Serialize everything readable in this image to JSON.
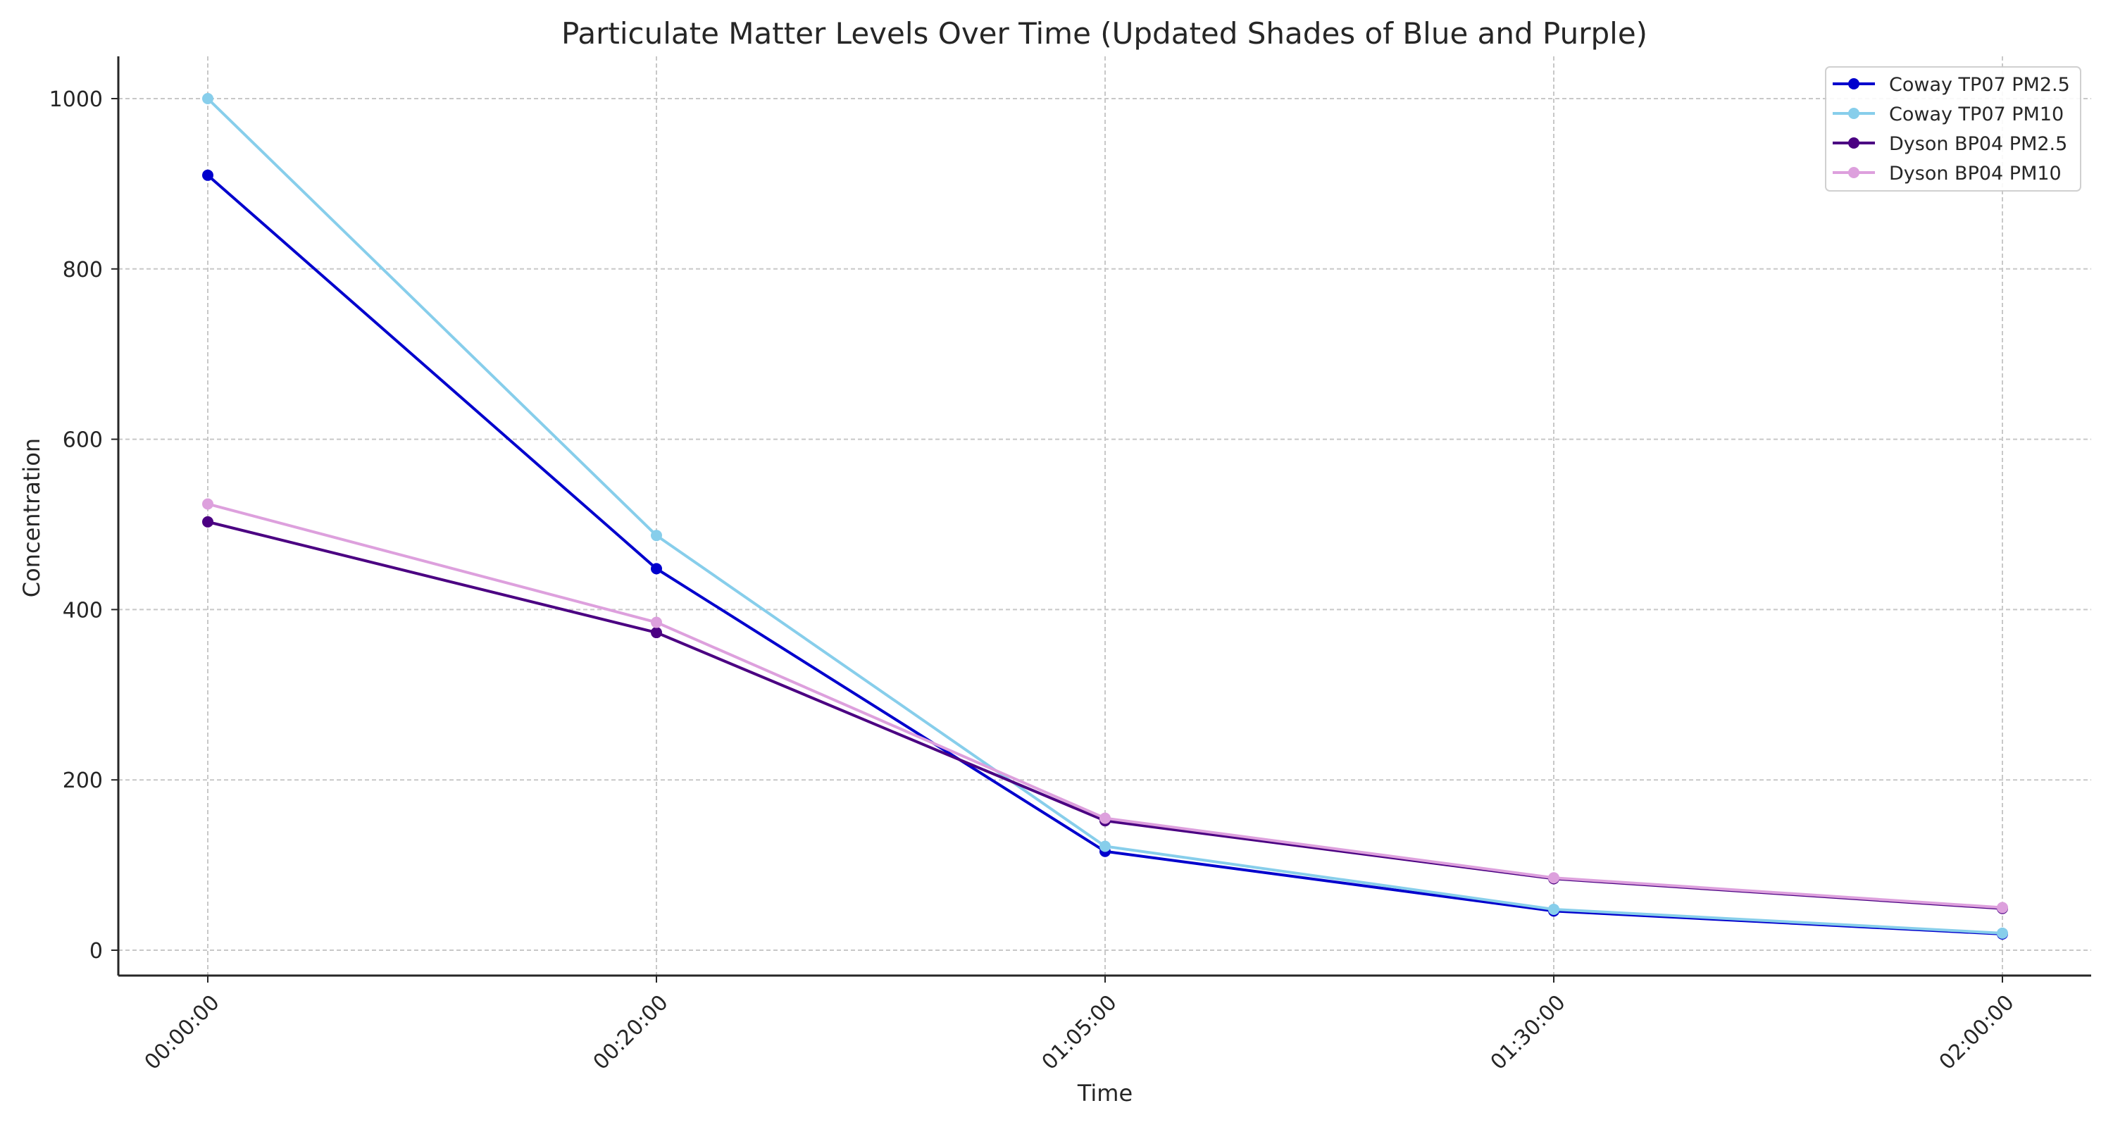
{
  "chart_data": {
    "type": "line",
    "title": "Particulate Matter Levels Over Time (Updated Shades of Blue and Purple)",
    "xlabel": "Time",
    "ylabel": "Concentration",
    "categories": [
      "00:00:00",
      "00:20:00",
      "01:05:00",
      "01:30:00",
      "02:00:00"
    ],
    "ylim": [
      -30,
      1050
    ],
    "yticks": [
      0,
      200,
      400,
      600,
      800,
      1000
    ],
    "grid": true,
    "legend_position": "top-right",
    "series": [
      {
        "name": "Coway TP07 PM2.5",
        "color": "#0000CD",
        "values": [
          910,
          448,
          116,
          46,
          19
        ]
      },
      {
        "name": "Coway TP07 PM10",
        "color": "#87CEEB",
        "values": [
          1000,
          487,
          122,
          48,
          20
        ]
      },
      {
        "name": "Dyson BP04 PM2.5",
        "color": "#4B0082",
        "values": [
          503,
          373,
          152,
          84,
          49
        ]
      },
      {
        "name": "Dyson BP04 PM10",
        "color": "#DDA0DD",
        "values": [
          524,
          385,
          155,
          85,
          50
        ]
      }
    ]
  }
}
